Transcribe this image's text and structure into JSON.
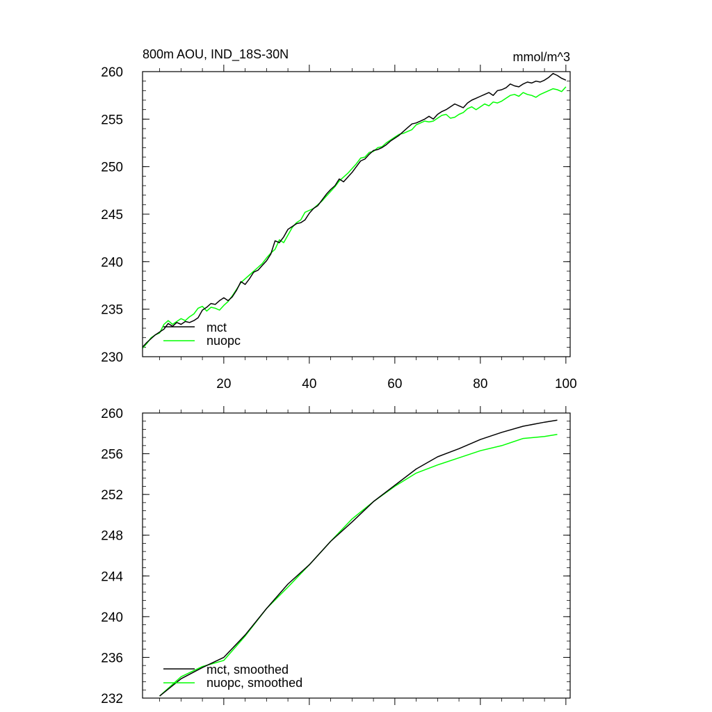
{
  "chart_data": [
    {
      "type": "line",
      "title": "800m AOU, IND_18S-30N",
      "units": "mmol/m^3",
      "xlim": [
        1,
        101
      ],
      "ylim": [
        230,
        260
      ],
      "yticks": [
        230,
        235,
        240,
        245,
        250,
        255,
        260
      ],
      "ytick_labels": [
        "230",
        "235",
        "240",
        "245",
        "250",
        "255",
        "260"
      ],
      "xticks": [
        20,
        40,
        60,
        80,
        100
      ],
      "xtick_labels": [
        "20",
        "40",
        "60",
        "80",
        "100"
      ],
      "legend_position": "bottom-left",
      "series": [
        {
          "name": "mct",
          "color": "#000000",
          "x": [
            1,
            2,
            3,
            4,
            5,
            6,
            7,
            8,
            9,
            10,
            11,
            12,
            13,
            14,
            15,
            16,
            17,
            18,
            19,
            20,
            21,
            22,
            23,
            24,
            25,
            26,
            27,
            28,
            29,
            30,
            31,
            32,
            33,
            34,
            35,
            36,
            37,
            38,
            39,
            40,
            41,
            42,
            43,
            44,
            45,
            46,
            47,
            48,
            49,
            50,
            51,
            52,
            53,
            54,
            55,
            56,
            57,
            58,
            59,
            60,
            61,
            62,
            63,
            64,
            65,
            66,
            67,
            68,
            69,
            70,
            71,
            72,
            73,
            74,
            75,
            76,
            77,
            78,
            79,
            80,
            81,
            82,
            83,
            84,
            85,
            86,
            87,
            88,
            89,
            90,
            91,
            92,
            93,
            94,
            95,
            96,
            97,
            98,
            99,
            100
          ],
          "values": [
            231.0,
            231.5,
            231.9,
            232.3,
            232.6,
            232.9,
            233.5,
            233.2,
            233.6,
            233.4,
            233.7,
            233.6,
            233.8,
            234.1,
            234.9,
            235.2,
            235.6,
            235.5,
            235.9,
            236.2,
            235.9,
            236.3,
            237.0,
            237.9,
            237.6,
            238.2,
            238.9,
            239.1,
            239.6,
            240.1,
            240.8,
            242.2,
            242.0,
            242.6,
            243.4,
            243.7,
            244.0,
            244.1,
            244.4,
            245.1,
            245.6,
            245.9,
            246.5,
            247.1,
            247.6,
            248.0,
            248.7,
            248.4,
            248.9,
            249.4,
            250.0,
            250.6,
            250.8,
            251.3,
            251.7,
            251.8,
            252.0,
            252.3,
            252.7,
            253.0,
            253.3,
            253.7,
            254.1,
            254.5,
            254.6,
            254.8,
            255.0,
            255.3,
            255.0,
            255.5,
            255.8,
            256.0,
            256.3,
            256.6,
            256.4,
            256.2,
            256.7,
            257.0,
            257.2,
            257.4,
            257.6,
            257.8,
            257.5,
            258.0,
            258.1,
            258.3,
            258.7,
            258.5,
            258.4,
            258.7,
            258.9,
            258.8,
            259.0,
            258.9,
            259.1,
            259.4,
            259.8,
            259.6,
            259.3,
            259.1
          ]
        },
        {
          "name": "nuopc",
          "color": "#00ff00",
          "x": [
            1,
            2,
            3,
            4,
            5,
            6,
            7,
            8,
            9,
            10,
            11,
            12,
            13,
            14,
            15,
            16,
            17,
            18,
            19,
            20,
            21,
            22,
            23,
            24,
            25,
            26,
            27,
            28,
            29,
            30,
            31,
            32,
            33,
            34,
            35,
            36,
            37,
            38,
            39,
            40,
            41,
            42,
            43,
            44,
            45,
            46,
            47,
            48,
            49,
            50,
            51,
            52,
            53,
            54,
            55,
            56,
            57,
            58,
            59,
            60,
            61,
            62,
            63,
            64,
            65,
            66,
            67,
            68,
            69,
            70,
            71,
            72,
            73,
            74,
            75,
            76,
            77,
            78,
            79,
            80,
            81,
            82,
            83,
            84,
            85,
            86,
            87,
            88,
            89,
            90,
            91,
            92,
            93,
            94,
            95,
            96,
            97,
            98,
            99,
            100
          ],
          "values": [
            230.9,
            231.4,
            232.0,
            232.3,
            232.5,
            233.4,
            233.8,
            233.4,
            233.7,
            234.0,
            233.8,
            234.2,
            234.5,
            235.1,
            235.3,
            234.8,
            235.2,
            235.1,
            234.9,
            235.4,
            235.8,
            236.4,
            237.1,
            237.8,
            238.2,
            238.6,
            239.0,
            239.4,
            239.8,
            240.4,
            240.9,
            241.3,
            242.3,
            242.0,
            242.8,
            243.6,
            244.1,
            244.4,
            245.2,
            245.4,
            245.6,
            246.0,
            246.4,
            246.9,
            247.4,
            247.9,
            248.5,
            248.9,
            249.3,
            249.8,
            250.3,
            250.9,
            251.0,
            251.5,
            251.6,
            252.0,
            252.1,
            252.5,
            252.8,
            253.1,
            253.4,
            253.5,
            253.7,
            253.9,
            254.4,
            254.6,
            254.8,
            254.7,
            254.8,
            255.1,
            255.4,
            255.5,
            255.1,
            255.2,
            255.5,
            255.7,
            256.1,
            256.3,
            256.0,
            256.3,
            256.6,
            256.4,
            256.8,
            256.7,
            256.9,
            257.2,
            257.5,
            257.6,
            257.4,
            257.8,
            257.6,
            257.5,
            257.3,
            257.6,
            257.8,
            258.0,
            258.2,
            258.1,
            257.9,
            258.4
          ]
        }
      ]
    },
    {
      "type": "line",
      "xlim": [
        1,
        101
      ],
      "ylim": [
        232,
        260
      ],
      "yticks": [
        232,
        236,
        240,
        244,
        248,
        252,
        256,
        260
      ],
      "ytick_labels": [
        "232",
        "236",
        "240",
        "244",
        "248",
        "252",
        "256",
        "260"
      ],
      "xticks": [
        20,
        40,
        60,
        80,
        100
      ],
      "legend_position": "bottom-left",
      "series": [
        {
          "name": "mct, smoothed",
          "color": "#000000",
          "x": [
            5,
            10,
            15,
            20,
            25,
            30,
            35,
            40,
            45,
            50,
            55,
            60,
            65,
            70,
            75,
            80,
            85,
            90,
            95,
            98
          ],
          "values": [
            232.2,
            233.9,
            235.0,
            236.0,
            238.2,
            240.8,
            243.2,
            245.1,
            247.4,
            249.3,
            251.3,
            252.9,
            254.5,
            255.7,
            256.5,
            257.4,
            258.1,
            258.7,
            259.1,
            259.3
          ]
        },
        {
          "name": "nuopc, smoothed",
          "color": "#00ff00",
          "x": [
            5,
            10,
            15,
            20,
            25,
            30,
            35,
            40,
            45,
            50,
            55,
            60,
            65,
            70,
            75,
            80,
            85,
            90,
            95,
            98
          ],
          "values": [
            232.2,
            234.1,
            235.1,
            235.7,
            238.1,
            240.8,
            242.9,
            245.1,
            247.4,
            249.6,
            251.3,
            252.8,
            254.1,
            254.9,
            255.6,
            256.3,
            256.8,
            257.5,
            257.7,
            257.9
          ]
        }
      ]
    }
  ]
}
